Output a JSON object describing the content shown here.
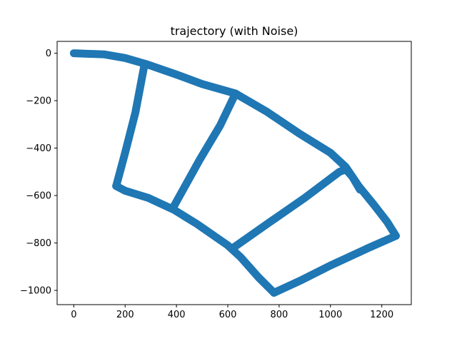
{
  "chart_data": {
    "type": "scatter",
    "title": "trajectory (with Noise)",
    "xlabel": "",
    "ylabel": "",
    "xlim": [
      -65,
      1315
    ],
    "ylim": [
      -1060,
      50
    ],
    "xticks": [
      0,
      200,
      400,
      600,
      800,
      1000,
      1200
    ],
    "yticks": [
      0,
      -200,
      -400,
      -600,
      -800,
      -1000
    ],
    "xtick_labels": [
      "0",
      "200",
      "400",
      "600",
      "800",
      "1000",
      "1200"
    ],
    "ytick_labels": [
      "0",
      "−200",
      "−400",
      "−600",
      "−800",
      "−1000"
    ],
    "color": "#1f77b4",
    "grid": false,
    "legend": "none",
    "series": [
      {
        "segments": [
          [
            [
              0,
              0
            ],
            [
              120,
              -5
            ],
            [
              200,
              -20
            ],
            [
              280,
              -45
            ],
            [
              400,
              -90
            ],
            [
              500,
              -130
            ],
            [
              630,
              -170
            ],
            [
              750,
              -245
            ],
            [
              880,
              -340
            ],
            [
              1000,
              -420
            ],
            [
              1060,
              -480
            ],
            [
              1110,
              -560
            ],
            [
              1170,
              -640
            ],
            [
              1220,
              -710
            ],
            [
              1255,
              -770
            ]
          ],
          [
            [
              1255,
              -770
            ],
            [
              1150,
              -820
            ],
            [
              1000,
              -895
            ],
            [
              880,
              -960
            ],
            [
              780,
              -1010
            ]
          ],
          [
            [
              780,
              -1010
            ],
            [
              720,
              -945
            ],
            [
              650,
              -860
            ],
            [
              600,
              -810
            ],
            [
              480,
              -720
            ],
            [
              390,
              -660
            ],
            [
              290,
              -610
            ],
            [
              200,
              -580
            ],
            [
              165,
              -560
            ]
          ],
          [
            [
              165,
              -560
            ],
            [
              200,
              -420
            ],
            [
              240,
              -250
            ],
            [
              275,
              -50
            ]
          ],
          [
            [
              385,
              -655
            ],
            [
              490,
              -450
            ],
            [
              570,
              -305
            ],
            [
              630,
              -170
            ]
          ],
          [
            [
              615,
              -825
            ],
            [
              760,
              -715
            ],
            [
              900,
              -610
            ],
            [
              1035,
              -500
            ],
            [
              1060,
              -490
            ],
            [
              1085,
              -520
            ],
            [
              1115,
              -575
            ]
          ]
        ]
      }
    ]
  }
}
